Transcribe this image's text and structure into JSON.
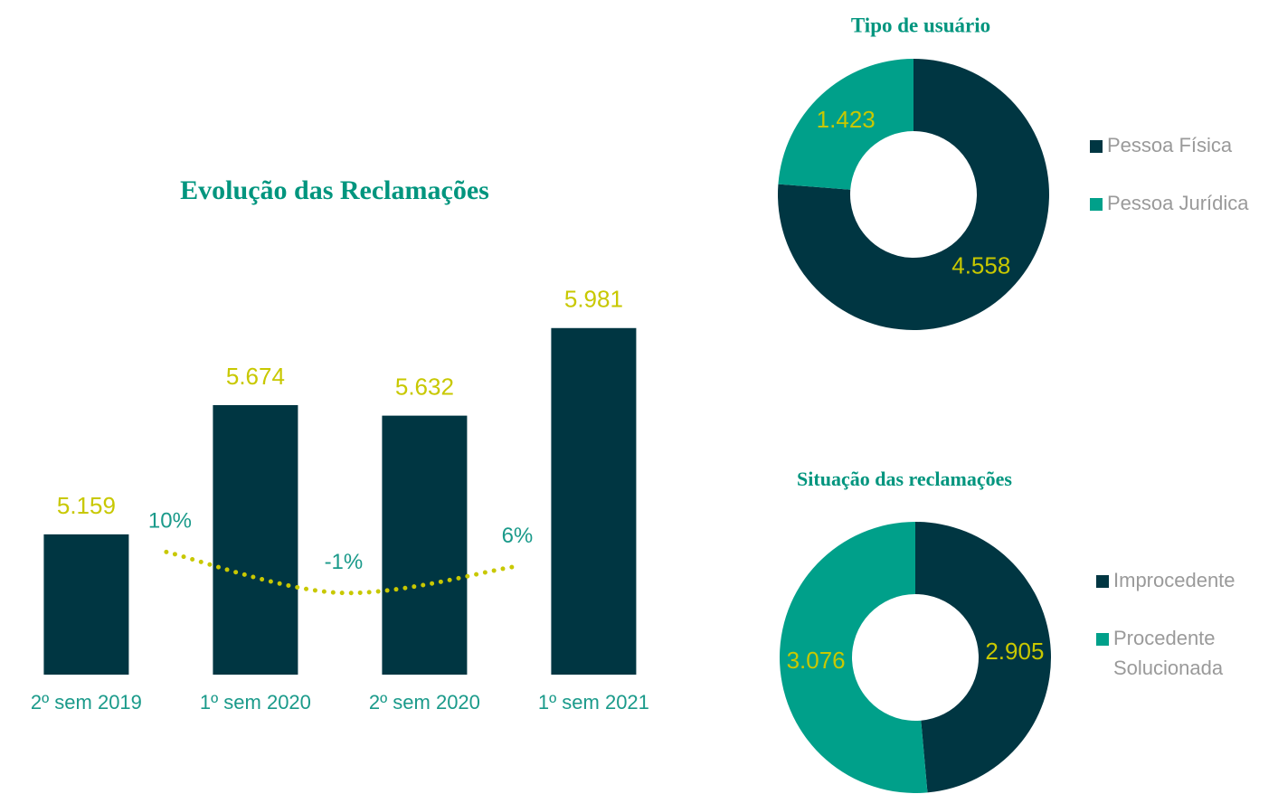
{
  "chart_data": [
    {
      "type": "bar",
      "title": "Evolução das Reclamações",
      "categories": [
        "2º sem 2019",
        "1º sem 2020",
        "2º sem 2020",
        "1º sem 2021"
      ],
      "values": [
        5159,
        5674,
        5632,
        5981
      ],
      "value_labels": [
        "5.159",
        "5.674",
        "5.632",
        "5.981"
      ],
      "color": "#003642",
      "ylim": [
        4600,
        6200
      ],
      "growth": {
        "values": [
          10,
          -1,
          6
        ],
        "value_labels": [
          "10%",
          "-1%",
          "6%"
        ],
        "color": "#c8c800",
        "axis": "y2"
      },
      "y2lim": [
        -23,
        85
      ]
    },
    {
      "type": "pie",
      "title": "Tipo de usuário",
      "categories": [
        "Pessoa Física",
        "Pessoa Jurídica"
      ],
      "values": [
        4558,
        1423
      ],
      "value_labels": [
        "4.558",
        "1.423"
      ],
      "colors": [
        "#003642",
        "#00a08a"
      ]
    },
    {
      "type": "pie",
      "title": "Situação das reclamações",
      "categories": [
        "Improcedente",
        "Procedente Solucionada"
      ],
      "values": [
        2905,
        3076
      ],
      "value_labels": [
        "2.905",
        "3.076"
      ],
      "colors": [
        "#003642",
        "#00a08a"
      ]
    }
  ]
}
